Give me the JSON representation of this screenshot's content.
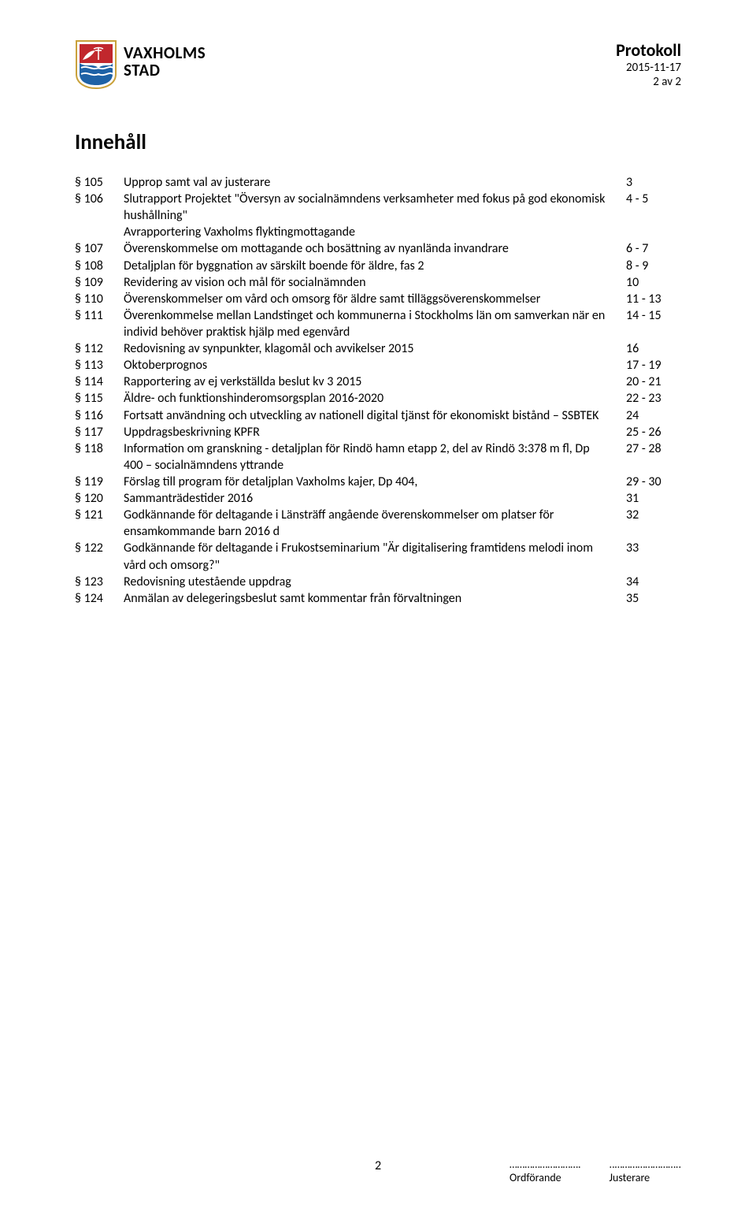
{
  "header": {
    "logo_line1": "VAXHOLMS",
    "logo_line2": "STAD",
    "protokoll": "Protokoll",
    "date": "2015-11-17",
    "page_of": "2 av 2"
  },
  "title": "Innehåll",
  "toc": [
    {
      "s": "§ 105",
      "t": "Upprop samt val av justerare",
      "p": "3"
    },
    {
      "s": "§ 106",
      "t": "Slutrapport Projektet \"Översyn av socialnämndens verksamheter med fokus på god ekonomisk hushållning\"\nAvrapportering Vaxholms flyktingmottagande",
      "p": "4 - 5"
    },
    {
      "s": "§ 107",
      "t": "Överenskommelse om mottagande och bosättning av nyanlända invandrare",
      "p": "6 - 7"
    },
    {
      "s": "§ 108",
      "t": "Detaljplan för byggnation av särskilt boende för äldre, fas 2",
      "p": "8 - 9"
    },
    {
      "s": "§ 109",
      "t": "Revidering av vision och mål för socialnämnden",
      "p": "10"
    },
    {
      "s": "§ 110",
      "t": "Överenskommelser om vård och omsorg för äldre samt tilläggsöverenskommelser",
      "p": "11 - 13"
    },
    {
      "s": "§ 111",
      "t": "Överenkommelse mellan Landstinget och kommunerna i Stockholms län om samverkan när en individ behöver praktisk hjälp med egenvård",
      "p": "14 - 15"
    },
    {
      "s": "§ 112",
      "t": "Redovisning av synpunkter, klagomål och avvikelser 2015",
      "p": "16"
    },
    {
      "s": "§ 113",
      "t": "Oktoberprognos",
      "p": "17 - 19"
    },
    {
      "s": "§ 114",
      "t": "Rapportering av ej verkställda beslut kv 3 2015",
      "p": "20 - 21"
    },
    {
      "s": "§ 115",
      "t": "Äldre- och funktionshinderomsorgsplan 2016-2020",
      "p": "22 - 23"
    },
    {
      "s": "§ 116",
      "t": "Fortsatt användning och utveckling av nationell digital tjänst för ekonomiskt bistånd – SSBTEK",
      "p": "24"
    },
    {
      "s": "§ 117",
      "t": "Uppdragsbeskrivning KPFR",
      "p": "25 - 26"
    },
    {
      "s": "§ 118",
      "t": "Information om granskning - detaljplan för Rindö hamn etapp 2, del av Rindö 3:378 m fl, Dp 400 – socialnämndens yttrande",
      "p": "27 - 28"
    },
    {
      "s": "§ 119",
      "t": "Förslag till program för detaljplan Vaxholms kajer, Dp 404,",
      "p": "29 - 30"
    },
    {
      "s": "§ 120",
      "t": "Sammanträdestider 2016",
      "p": "31"
    },
    {
      "s": "§ 121",
      "t": "Godkännande för deltagande i Länsträff angående överenskommelser om platser för ensamkommande barn 2016 d",
      "p": "32"
    },
    {
      "s": "§ 122",
      "t": "Godkännande för deltagande i Frukostseminarium \"Är digitalisering framtidens melodi inom vård och omsorg?\"",
      "p": "33"
    },
    {
      "s": "§ 123",
      "t": "Redovisning utestående uppdrag",
      "p": "34"
    },
    {
      "s": "§ 124",
      "t": "Anmälan av delegeringsbeslut samt kommentar från förvaltningen",
      "p": "35"
    }
  ],
  "footer": {
    "page_number": "2",
    "sig_dots": "……………………….",
    "sig1": "Ordförande",
    "sig_dots2": "..……………………..",
    "sig2": "Justerare"
  }
}
